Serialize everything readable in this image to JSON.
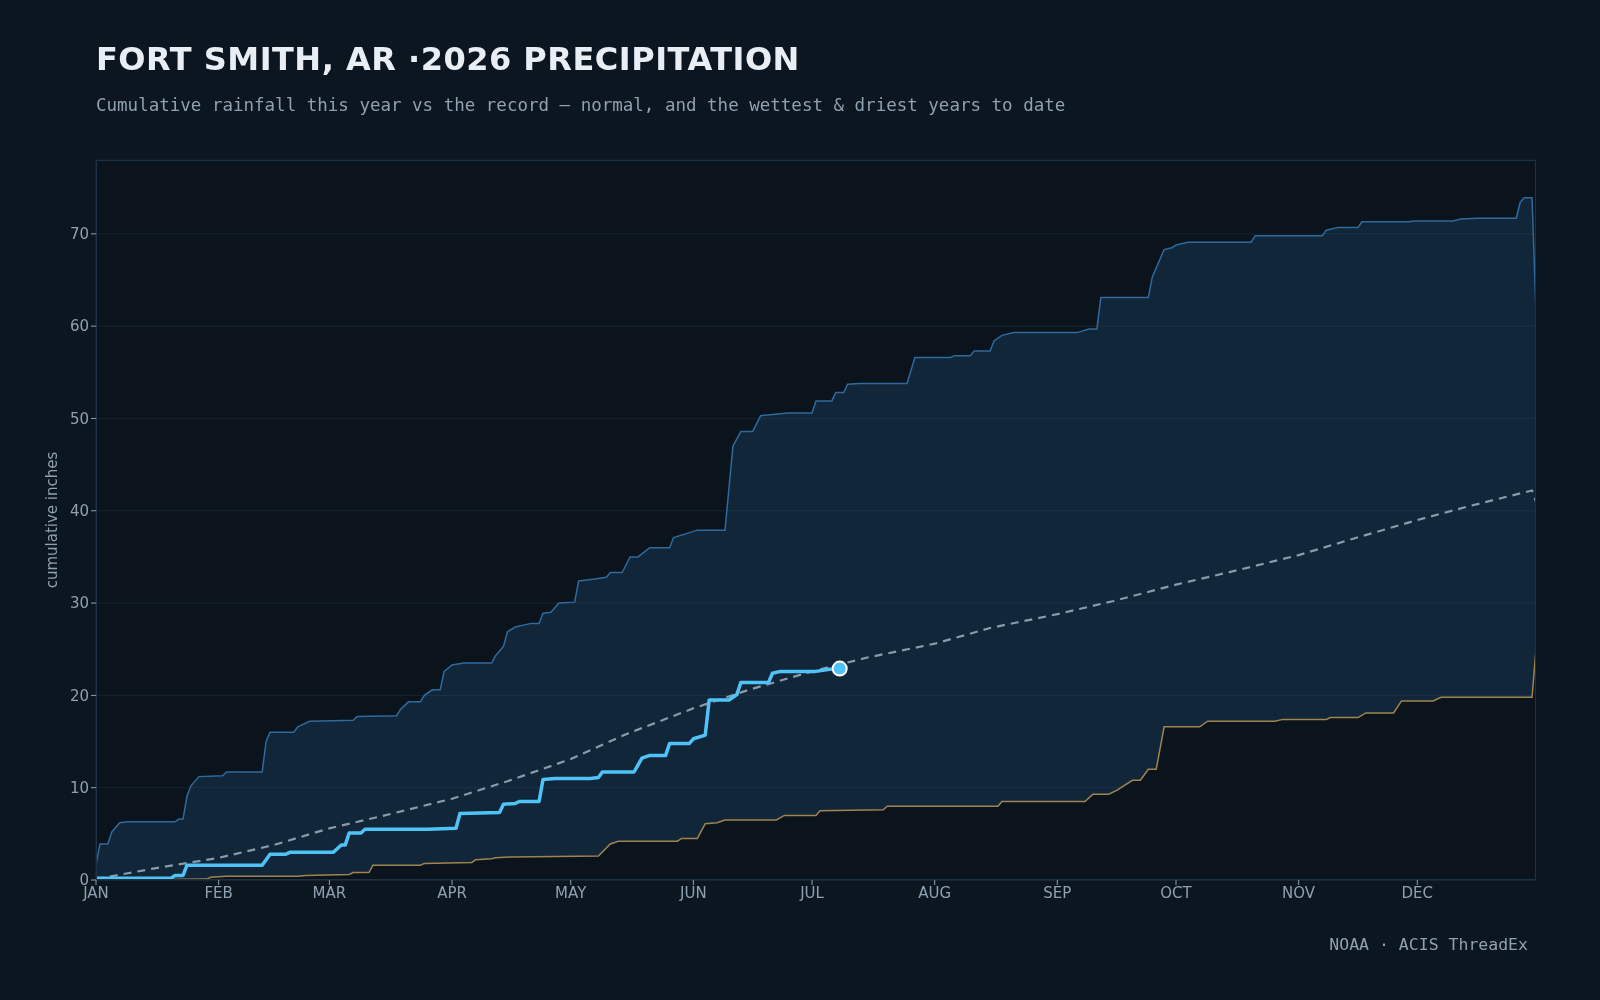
{
  "chart_data": {
    "type": "line",
    "title": "FORT SMITH, AR ·2026 PRECIPITATION",
    "subtitle": "Cumulative rainfall this year vs the record — normal, and the wettest & driest years to date",
    "ylabel": "cumulative inches",
    "annotations": [
      "NOAA · ACIS ThreadEx"
    ],
    "xlim": [
      "--01-01",
      "--12-31"
    ],
    "xticks": [
      {
        "value": "--01-01",
        "label": "JAN"
      },
      {
        "value": "--02-01",
        "label": "FEB"
      },
      {
        "value": "--03-01",
        "label": "MAR"
      },
      {
        "value": "--04-01",
        "label": "APR"
      },
      {
        "value": "--05-01",
        "label": "MAY"
      },
      {
        "value": "--06-01",
        "label": "JUN"
      },
      {
        "value": "--07-01",
        "label": "JUL"
      },
      {
        "value": "--08-01",
        "label": "AUG"
      },
      {
        "value": "--09-01",
        "label": "SEP"
      },
      {
        "value": "--10-01",
        "label": "OCT"
      },
      {
        "value": "--11-01",
        "label": "NOV"
      },
      {
        "value": "--12-01",
        "label": "DEC"
      }
    ],
    "ylim": [
      0,
      78
    ],
    "yticks": [
      0,
      10,
      20,
      30,
      40,
      50,
      60,
      70
    ],
    "grid": "y",
    "series": [
      {
        "type": "area",
        "color": "#2e6a9e",
        "x": [
          "--01-01",
          "--01-02",
          "--01-04",
          "--01-05",
          "--01-07",
          "--01-09",
          "--01-21",
          "--01-22",
          "--01-23",
          "--01-24",
          "--01-25",
          "--01-27",
          "--02-02",
          "--02-03",
          "--02-12",
          "--02-13",
          "--02-14",
          "--02-20",
          "--02-21",
          "--02-24",
          "--03-07",
          "--03-08",
          "--03-18",
          "--03-19",
          "--03-21",
          "--03-24",
          "--03-25",
          "--03-27",
          "--03-29",
          "--03-30",
          "--04-01",
          "--04-04",
          "--04-11",
          "--04-12",
          "--04-14",
          "--04-15",
          "--04-17",
          "--04-21",
          "--04-23",
          "--04-24",
          "--04-26",
          "--04-28",
          "--05-02",
          "--05-03",
          "--05-07",
          "--05-10",
          "--05-11",
          "--05-14",
          "--05-16",
          "--05-18",
          "--05-21",
          "--05-26",
          "--05-27",
          "--05-30",
          "--06-02",
          "--06-09",
          "--06-11",
          "--06-13",
          "--06-16",
          "--06-18",
          "--06-25",
          "--07-01",
          "--07-02",
          "--07-06",
          "--07-07",
          "--07-09",
          "--07-10",
          "--07-13",
          "--07-25",
          "--07-27",
          "--08-05",
          "--08-06",
          "--08-10",
          "--08-11",
          "--08-15",
          "--08-16",
          "--08-18",
          "--08-21",
          "--09-06",
          "--09-09",
          "--09-11",
          "--09-12",
          "--09-24",
          "--09-25",
          "--09-28",
          "--09-30",
          "--10-01",
          "--10-04",
          "--10-20",
          "--10-21",
          "--11-07",
          "--11-08",
          "--11-11",
          "--11-16",
          "--11-17",
          "--11-29",
          "--11-30",
          "--12-10",
          "--12-12",
          "--12-16",
          "--12-26",
          "--12-27",
          "--12-28",
          "--12-30",
          "--12-31"
        ],
        "values": [
          1.6,
          3.9,
          3.9,
          5.2,
          6.2,
          6.3,
          6.3,
          6.6,
          6.6,
          9.1,
          10.2,
          11.2,
          11.3,
          11.7,
          11.7,
          15.0,
          16.0,
          16.0,
          16.6,
          17.2,
          17.3,
          17.7,
          17.8,
          18.5,
          19.3,
          19.3,
          20.0,
          20.6,
          20.6,
          22.6,
          23.3,
          23.5,
          23.5,
          24.3,
          25.3,
          26.9,
          27.4,
          27.8,
          27.8,
          28.9,
          29.0,
          30.0,
          30.1,
          32.4,
          32.6,
          32.8,
          33.3,
          33.3,
          35.0,
          35.0,
          36.0,
          36.0,
          37.1,
          37.5,
          37.9,
          37.9,
          47.0,
          48.6,
          48.6,
          50.3,
          50.6,
          50.6,
          51.9,
          51.9,
          52.8,
          52.8,
          53.7,
          53.8,
          53.8,
          56.6,
          56.6,
          56.8,
          56.8,
          57.3,
          57.3,
          58.4,
          59.0,
          59.3,
          59.3,
          59.7,
          59.7,
          63.1,
          63.1,
          65.3,
          68.3,
          68.5,
          68.8,
          69.1,
          69.1,
          69.8,
          69.8,
          70.4,
          70.7,
          70.7,
          71.3,
          71.3,
          71.4,
          71.4,
          71.6,
          71.7,
          71.7,
          73.4,
          73.9,
          73.9,
          61.4
        ]
      },
      {
        "type": "area",
        "color": "#a0844f",
        "x": [
          "--01-01",
          "--01-29",
          "--01-30",
          "--02-03",
          "--02-21",
          "--02-23",
          "--03-06",
          "--03-07",
          "--03-11",
          "--03-12",
          "--03-24",
          "--03-25",
          "--04-06",
          "--04-07",
          "--04-11",
          "--04-12",
          "--04-16",
          "--05-08",
          "--05-11",
          "--05-13",
          "--05-28",
          "--05-29",
          "--06-02",
          "--06-04",
          "--06-07",
          "--06-09",
          "--06-22",
          "--06-24",
          "--07-02",
          "--07-03",
          "--07-19",
          "--07-20",
          "--08-17",
          "--08-18",
          "--09-08",
          "--09-10",
          "--09-14",
          "--09-16",
          "--09-20",
          "--09-22",
          "--09-24",
          "--09-26",
          "--09-28",
          "--10-07",
          "--10-09",
          "--10-26",
          "--10-28",
          "--11-08",
          "--11-09",
          "--11-16",
          "--11-18",
          "--11-25",
          "--11-27",
          "--12-05",
          "--12-07",
          "--12-30",
          "--12-31"
        ],
        "values": [
          0,
          0.1,
          0.3,
          0.4,
          0.4,
          0.5,
          0.6,
          0.8,
          0.8,
          1.6,
          1.6,
          1.8,
          1.9,
          2.2,
          2.3,
          2.4,
          2.5,
          2.6,
          3.9,
          4.2,
          4.2,
          4.5,
          4.5,
          6.1,
          6.2,
          6.5,
          6.5,
          7.0,
          7.0,
          7.5,
          7.6,
          8.0,
          8.0,
          8.5,
          8.5,
          9.3,
          9.3,
          9.7,
          10.8,
          10.8,
          12.0,
          12.0,
          16.6,
          16.6,
          17.2,
          17.2,
          17.4,
          17.4,
          17.6,
          17.6,
          18.1,
          18.1,
          19.4,
          19.4,
          19.8,
          19.8,
          25.0
        ]
      },
      {
        "color": "#8a9aaa",
        "line_style": "dashed",
        "x": [
          "--01-01",
          "--01-15",
          "--02-01",
          "--02-15",
          "--03-01",
          "--03-15",
          "--04-01",
          "--04-15",
          "--05-01",
          "--05-15",
          "--06-01",
          "--06-15",
          "--07-01",
          "--07-15",
          "--08-01",
          "--08-15",
          "--09-01",
          "--09-15",
          "--10-01",
          "--10-15",
          "--11-01",
          "--11-15",
          "--12-01",
          "--12-15",
          "--12-30",
          "--12-31"
        ],
        "values": [
          0.1,
          1.2,
          2.4,
          3.8,
          5.6,
          7.0,
          8.8,
          10.7,
          13.1,
          15.8,
          18.6,
          20.6,
          22.6,
          24.1,
          25.6,
          27.3,
          28.8,
          30.2,
          32.0,
          33.4,
          35.2,
          37.0,
          39.0,
          40.6,
          42.2,
          41.0
        ]
      },
      {
        "color": "#4fc3f7",
        "x": [
          "--01-01",
          "--01-20",
          "--01-21",
          "--01-23",
          "--01-24",
          "--02-12",
          "--02-14",
          "--02-18",
          "--02-19",
          "--03-02",
          "--03-04",
          "--03-05",
          "--03-06",
          "--03-09",
          "--03-10",
          "--03-26",
          "--04-02",
          "--04-03",
          "--04-13",
          "--04-14",
          "--04-17",
          "--04-18",
          "--04-23",
          "--04-24",
          "--04-27",
          "--05-06",
          "--05-08",
          "--05-09",
          "--05-17",
          "--05-19",
          "--05-21",
          "--05-25",
          "--05-26",
          "--05-31",
          "--06-01",
          "--06-04",
          "--06-05",
          "--06-10",
          "--06-12",
          "--06-13",
          "--06-20",
          "--06-21",
          "--06-23",
          "--07-02",
          "--07-05",
          "--07-08"
        ],
        "values": [
          0.2,
          0.2,
          0.5,
          0.5,
          1.6,
          1.6,
          2.8,
          2.8,
          3.0,
          3.0,
          3.8,
          3.8,
          5.1,
          5.1,
          5.5,
          5.5,
          5.6,
          7.2,
          7.3,
          8.2,
          8.3,
          8.5,
          8.5,
          10.9,
          11.0,
          11.0,
          11.1,
          11.7,
          11.7,
          13.2,
          13.5,
          13.5,
          14.8,
          14.8,
          15.3,
          15.7,
          19.5,
          19.5,
          20.1,
          21.4,
          21.4,
          22.4,
          22.6,
          22.6,
          22.8,
          22.9
        ]
      },
      {
        "type": "scatter",
        "color": "#4fc3f7",
        "marker": "circle",
        "x": [
          "--07-08"
        ],
        "values": [
          22.9
        ]
      }
    ]
  }
}
